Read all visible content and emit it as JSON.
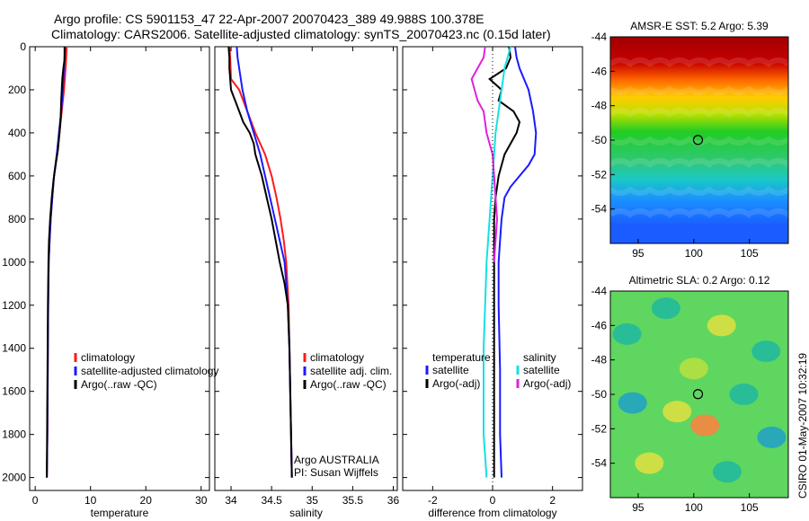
{
  "header": {
    "title_line1": "Argo profile: CS 5901153_47 22-Apr-2007 20070423_389 49.988S 100.378E",
    "title_line2": "Climatology: CARS2006. Satellite-adjusted climatology: synTS_20070423.nc (0.15d later)"
  },
  "credit": "CSIRO 01-May-2007 10:32:19",
  "colors": {
    "climatology": "#ff1a1a",
    "satellite": "#1a1aff",
    "argo": "#000000",
    "salinity_satellite": "#18e0e0",
    "salinity_argo": "#e020e0"
  },
  "chart_data": [
    {
      "id": "temperature",
      "type": "line",
      "xlabel": "temperature",
      "ylabel": "",
      "xlim": [
        -1,
        31.5
      ],
      "ylim": [
        2060,
        0
      ],
      "xticks": [
        0,
        10,
        20,
        30
      ],
      "yticks": [
        0,
        200,
        400,
        600,
        800,
        1000,
        1200,
        1400,
        1600,
        1800,
        2000
      ],
      "legend": [
        "climatology",
        "satellite-adjusted climatology",
        "Argo(..raw -QC)"
      ],
      "legend_position": "lower-right",
      "series": [
        {
          "name": "climatology",
          "color": "climatology",
          "x": [
            5.7,
            5.6,
            5.5,
            5.2,
            4.8,
            4.4,
            3.9,
            3.4,
            3.1,
            2.8,
            2.6,
            2.45,
            2.35,
            2.3,
            2.25,
            2.2,
            2.15,
            2.1
          ],
          "y": [
            0,
            50,
            100,
            200,
            300,
            400,
            500,
            600,
            700,
            800,
            900,
            1000,
            1200,
            1400,
            1600,
            1800,
            1900,
            2000
          ]
        },
        {
          "name": "satellite-adjusted climatology",
          "color": "satellite",
          "x": [
            5.4,
            5.3,
            5.2,
            5.0,
            4.7,
            4.3,
            3.9,
            3.4,
            3.1,
            2.8,
            2.6,
            2.45,
            2.35,
            2.3,
            2.25,
            2.2,
            2.1
          ],
          "y": [
            0,
            50,
            100,
            200,
            300,
            400,
            500,
            600,
            700,
            800,
            900,
            1000,
            1200,
            1400,
            1600,
            1800,
            2000
          ]
        },
        {
          "name": "Argo(..raw -QC)",
          "color": "argo",
          "x": [
            5.3,
            5.3,
            5.1,
            4.9,
            4.7,
            4.6,
            4.4,
            4.1,
            3.7,
            3.3,
            3.0,
            2.7,
            2.5,
            2.4,
            2.3,
            2.25,
            2.2,
            2.15,
            2.1
          ],
          "y": [
            0,
            60,
            100,
            150,
            250,
            330,
            400,
            480,
            550,
            620,
            700,
            800,
            900,
            1000,
            1200,
            1400,
            1600,
            1800,
            2000
          ]
        }
      ]
    },
    {
      "id": "salinity",
      "type": "line",
      "xlabel": "salinity",
      "ylabel": "",
      "xlim": [
        33.8,
        36.05
      ],
      "ylim": [
        2060,
        0
      ],
      "xticks": [
        34,
        34.5,
        35,
        35.5,
        36
      ],
      "xticklabels": [
        "34",
        "34.5",
        "35",
        "35.5",
        "36"
      ],
      "legend": [
        "climatology",
        "satellite adj. clim.",
        "Argo(..raw -QC)"
      ],
      "legend_position": "lower-right",
      "annotations": [
        "Argo AUSTRALIA",
        "PI: Susan Wijffels"
      ],
      "series": [
        {
          "name": "climatology",
          "color": "climatology",
          "x": [
            33.98,
            33.99,
            34.0,
            34.1,
            34.2,
            34.3,
            34.42,
            34.5,
            34.56,
            34.61,
            34.65,
            34.68,
            34.71,
            34.72,
            34.73,
            34.74,
            34.75
          ],
          "y": [
            0,
            50,
            150,
            200,
            300,
            400,
            500,
            600,
            700,
            800,
            900,
            1000,
            1200,
            1400,
            1600,
            1800,
            2000
          ]
        },
        {
          "name": "satellite adj. clim.",
          "color": "satellite",
          "x": [
            34.07,
            34.08,
            34.12,
            34.14,
            34.2,
            34.28,
            34.36,
            34.42,
            34.48,
            34.54,
            34.6,
            34.66,
            34.7,
            34.72,
            34.73,
            34.74,
            34.75
          ],
          "y": [
            0,
            50,
            150,
            200,
            300,
            400,
            500,
            600,
            700,
            800,
            900,
            1000,
            1200,
            1400,
            1600,
            1800,
            2000
          ]
        },
        {
          "name": "Argo(..raw -QC)",
          "color": "argo",
          "x": [
            33.97,
            33.98,
            33.98,
            33.99,
            34.0,
            34.05,
            34.1,
            34.15,
            34.23,
            34.28,
            34.3,
            34.38,
            34.44,
            34.5,
            34.55,
            34.6,
            34.66,
            34.7,
            34.72,
            34.73,
            34.74,
            34.75
          ],
          "y": [
            0,
            50,
            100,
            150,
            200,
            250,
            300,
            350,
            400,
            450,
            500,
            600,
            700,
            800,
            900,
            1000,
            1100,
            1200,
            1400,
            1600,
            1800,
            2000
          ]
        }
      ]
    },
    {
      "id": "difference",
      "type": "line",
      "xlabel": "difference from climatology",
      "ylabel": "",
      "xlim": [
        -3,
        3
      ],
      "ylim": [
        2060,
        0
      ],
      "xticks": [
        -2,
        0,
        2
      ],
      "legend_temperature_title": "temperature",
      "legend_temperature": [
        "satellite",
        "Argo(-adj)"
      ],
      "legend_salinity_title": "salinity",
      "legend_salinity": [
        "satellite",
        "Argo(-adj)"
      ],
      "legend_position": "lower-right",
      "series": [
        {
          "name": "temperature satellite",
          "color": "satellite",
          "x": [
            0.75,
            0.8,
            0.9,
            1.2,
            1.35,
            1.45,
            1.4,
            1.2,
            0.9,
            0.6,
            0.4,
            0.3,
            0.25,
            0.2,
            0.2,
            0.25,
            0.25,
            0.3
          ],
          "y": [
            0,
            50,
            100,
            200,
            300,
            400,
            500,
            550,
            600,
            650,
            700,
            800,
            900,
            1000,
            1200,
            1500,
            1800,
            2000
          ]
        },
        {
          "name": "temperature Argo(-adj)",
          "color": "argo",
          "x": [
            0.55,
            0.6,
            0.45,
            -0.1,
            0.3,
            0.2,
            0.7,
            0.9,
            0.8,
            0.6,
            0.4,
            0.2,
            0.1,
            0.05,
            0.05,
            0.05,
            0.05,
            0.05,
            0.05
          ],
          "y": [
            0,
            50,
            100,
            150,
            200,
            250,
            300,
            350,
            400,
            450,
            500,
            600,
            700,
            800,
            900,
            1000,
            1200,
            1600,
            2000
          ]
        },
        {
          "name": "salinity satellite",
          "color": "salinity_satellite",
          "x": [
            0.6,
            0.5,
            0.4,
            0.3,
            0.2,
            0.1,
            0.05,
            0.0,
            -0.05,
            -0.1,
            -0.15,
            -0.2,
            -0.25,
            -0.3,
            -0.3,
            -0.3,
            -0.25,
            -0.2
          ],
          "y": [
            0,
            50,
            100,
            200,
            300,
            400,
            500,
            600,
            700,
            800,
            900,
            1000,
            1200,
            1400,
            1600,
            1800,
            1900,
            2000
          ]
        },
        {
          "name": "salinity Argo(-adj)",
          "color": "salinity_argo",
          "x": [
            -0.25,
            -0.3,
            -0.5,
            -0.7,
            -0.6,
            -0.5,
            -0.3,
            -0.2,
            0.0,
            0.05,
            0.1,
            0.15,
            0.1,
            0.05
          ],
          "y": [
            0,
            50,
            100,
            150,
            200,
            250,
            300,
            400,
            500,
            600,
            700,
            800,
            900,
            1000
          ]
        }
      ]
    },
    {
      "id": "sst_map",
      "type": "heatmap",
      "title": "AMSR-E SST: 5.2 Argo: 5.39",
      "xlim": [
        92.5,
        108.5
      ],
      "ylim": [
        -56,
        -44
      ],
      "xticks": [
        95,
        100,
        105
      ],
      "yticks": [
        -44,
        -46,
        -48,
        -50,
        -52,
        -54
      ],
      "marker": {
        "lon": 100.378,
        "lat": -49.988
      },
      "bands": [
        {
          "lat": -44,
          "color": "#a00000"
        },
        {
          "lat": -45.5,
          "color": "#c80000"
        },
        {
          "lat": -46.5,
          "color": "#ff6600"
        },
        {
          "lat": -47.5,
          "color": "#ffcc00"
        },
        {
          "lat": -48.5,
          "color": "#b8e000"
        },
        {
          "lat": -49.5,
          "color": "#22cc22"
        },
        {
          "lat": -51.3,
          "color": "#2fc87a"
        },
        {
          "lat": -52.3,
          "color": "#19c8c8"
        },
        {
          "lat": -53.5,
          "color": "#1a8fff"
        },
        {
          "lat": -55,
          "color": "#1a5cff"
        }
      ]
    },
    {
      "id": "sla_map",
      "type": "heatmap",
      "title": "Altimetric SLA: 0.2 Argo: 0.12",
      "xlim": [
        92.5,
        108.5
      ],
      "ylim": [
        -56,
        -44
      ],
      "xticks": [
        95,
        100,
        105
      ],
      "yticks": [
        -44,
        -46,
        -48,
        -50,
        -52,
        -54
      ],
      "marker": {
        "lon": 100.378,
        "lat": -49.988
      },
      "base_color": "#5fd65f",
      "blobs": [
        {
          "lon": 94.0,
          "lat": -46.5,
          "color": "#1fb8a0"
        },
        {
          "lon": 97.5,
          "lat": -45.0,
          "color": "#1fb8a0"
        },
        {
          "lon": 102.5,
          "lat": -46.0,
          "color": "#e0e040"
        },
        {
          "lon": 106.5,
          "lat": -47.5,
          "color": "#1fb8a0"
        },
        {
          "lon": 94.5,
          "lat": -50.5,
          "color": "#1fa0c8"
        },
        {
          "lon": 98.5,
          "lat": -51.0,
          "color": "#e0e040"
        },
        {
          "lon": 101.0,
          "lat": -51.8,
          "color": "#ff8040"
        },
        {
          "lon": 104.5,
          "lat": -50.0,
          "color": "#1fb8a0"
        },
        {
          "lon": 107.0,
          "lat": -52.5,
          "color": "#1fa0c8"
        },
        {
          "lon": 96.0,
          "lat": -54.0,
          "color": "#e0e040"
        },
        {
          "lon": 103.0,
          "lat": -54.5,
          "color": "#1fb8a0"
        },
        {
          "lon": 100.0,
          "lat": -48.5,
          "color": "#b8e040"
        }
      ]
    }
  ]
}
